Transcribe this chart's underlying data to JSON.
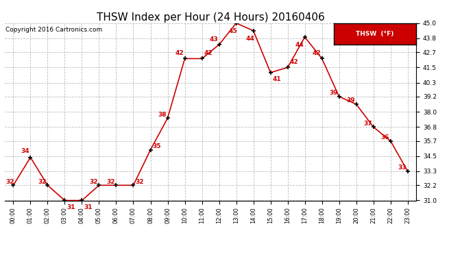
{
  "title": "THSW Index per Hour (24 Hours) 20160406",
  "copyright": "Copyright 2016 Cartronics.com",
  "legend_label": "THSW  (°F)",
  "hours": [
    0,
    1,
    2,
    3,
    4,
    5,
    6,
    7,
    8,
    9,
    10,
    11,
    12,
    13,
    14,
    15,
    16,
    17,
    18,
    19,
    20,
    21,
    22,
    23
  ],
  "values": [
    32.2,
    34.4,
    32.2,
    31.0,
    31.0,
    32.2,
    32.2,
    32.2,
    35.0,
    37.5,
    42.2,
    42.2,
    43.3,
    45.0,
    44.4,
    41.1,
    41.5,
    43.9,
    42.2,
    39.2,
    38.6,
    36.8,
    35.7,
    33.3
  ],
  "line_color": "#cc0000",
  "marker_color": "#000000",
  "label_color": "#cc0000",
  "bg_color": "#ffffff",
  "grid_color": "#bbbbbb",
  "ylim": [
    31.0,
    45.0
  ],
  "yticks": [
    31.0,
    32.2,
    33.3,
    34.5,
    35.7,
    36.8,
    38.0,
    39.2,
    40.3,
    41.5,
    42.7,
    43.8,
    45.0
  ],
  "title_fontsize": 11,
  "copyright_fontsize": 6.5,
  "label_fontsize": 6.5,
  "legend_box_color": "#cc0000",
  "legend_text_color": "#ffffff"
}
